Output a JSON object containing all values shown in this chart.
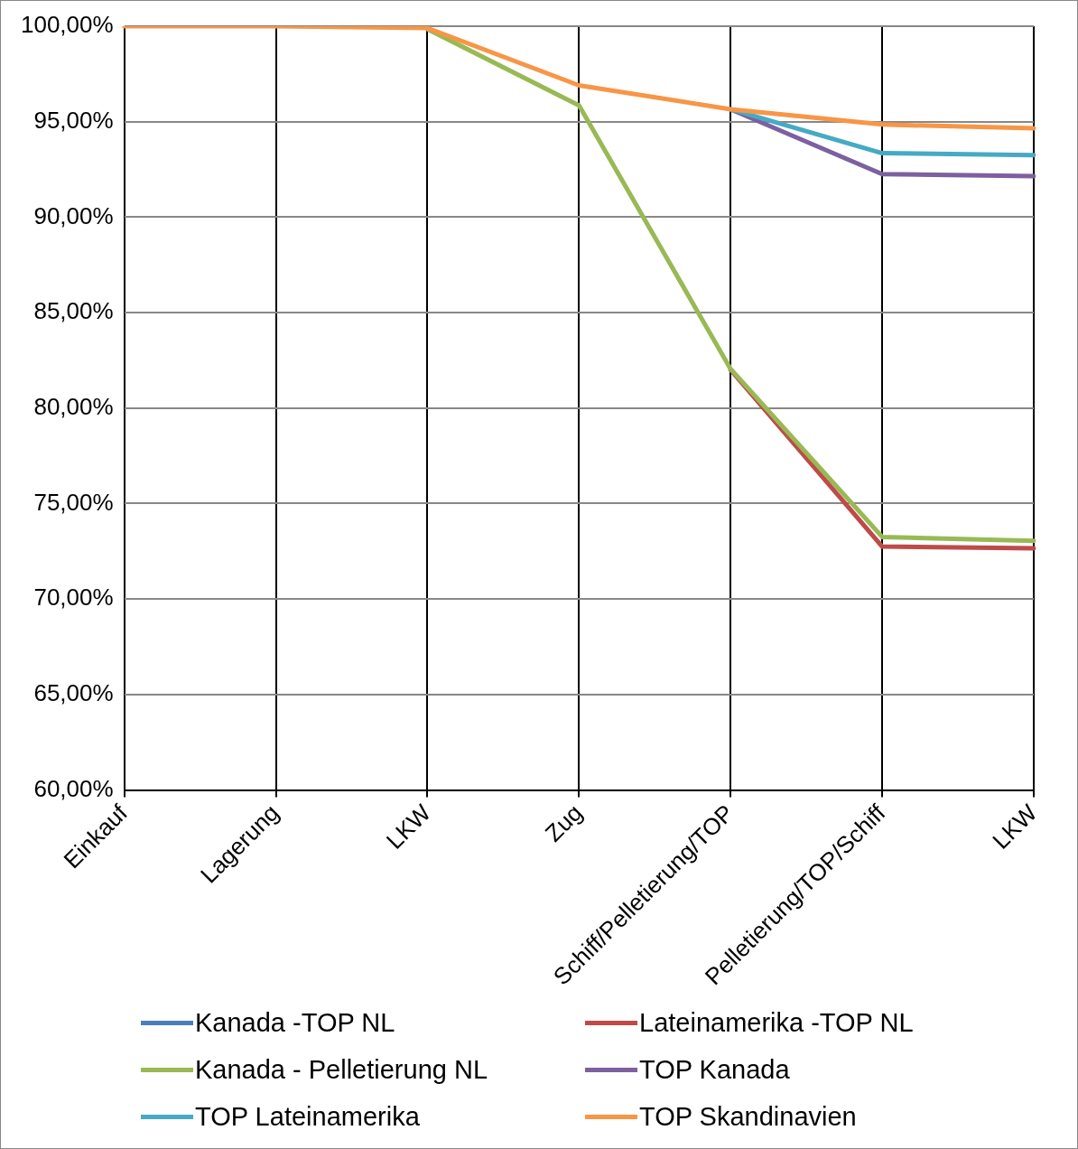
{
  "chart_data": {
    "type": "line",
    "categories": [
      "Einkauf",
      "Lagerung",
      "LKW",
      "Zug",
      "Schiff/Pelletierung/TOP",
      "Pelletierung/TOP/Schiff",
      "LKW"
    ],
    "series": [
      {
        "name": "Kanada -TOP NL",
        "color": "#4a7ebb",
        "values": [
          null,
          null,
          null,
          null,
          null,
          null,
          null
        ]
      },
      {
        "name": "Lateinamerika -TOP NL",
        "color": "#be4b48",
        "values": [
          null,
          null,
          null,
          null,
          82,
          72.75,
          72.65
        ]
      },
      {
        "name": "Kanada - Pelletierung NL",
        "color": "#98b954",
        "values": [
          null,
          null,
          99.85,
          95.85,
          82.05,
          73.25,
          73.05
        ]
      },
      {
        "name": "TOP Kanada",
        "color": "#7d60a0",
        "values": [
          null,
          null,
          null,
          null,
          95.65,
          92.25,
          92.15
        ]
      },
      {
        "name": "TOP Lateinamerika",
        "color": "#46aac5",
        "values": [
          null,
          null,
          null,
          null,
          95.65,
          93.35,
          93.25
        ]
      },
      {
        "name": "TOP Skandinavien",
        "color": "#f79646",
        "values": [
          100,
          100,
          99.9,
          96.9,
          95.65,
          94.85,
          94.65
        ]
      }
    ],
    "ylim": [
      60,
      100
    ],
    "yticks": [
      {
        "value": 60,
        "label": "60,00%"
      },
      {
        "value": 65,
        "label": "65,00%"
      },
      {
        "value": 70,
        "label": "70,00%"
      },
      {
        "value": 75,
        "label": "75,00%"
      },
      {
        "value": 80,
        "label": "80,00%"
      },
      {
        "value": 85,
        "label": "85,00%"
      },
      {
        "value": 90,
        "label": "90,00%"
      },
      {
        "value": 95,
        "label": "95,00%"
      },
      {
        "value": 100,
        "label": "100,00%"
      }
    ],
    "grid": true,
    "legend": "bottom",
    "marker": "none",
    "line_style": "solid"
  }
}
